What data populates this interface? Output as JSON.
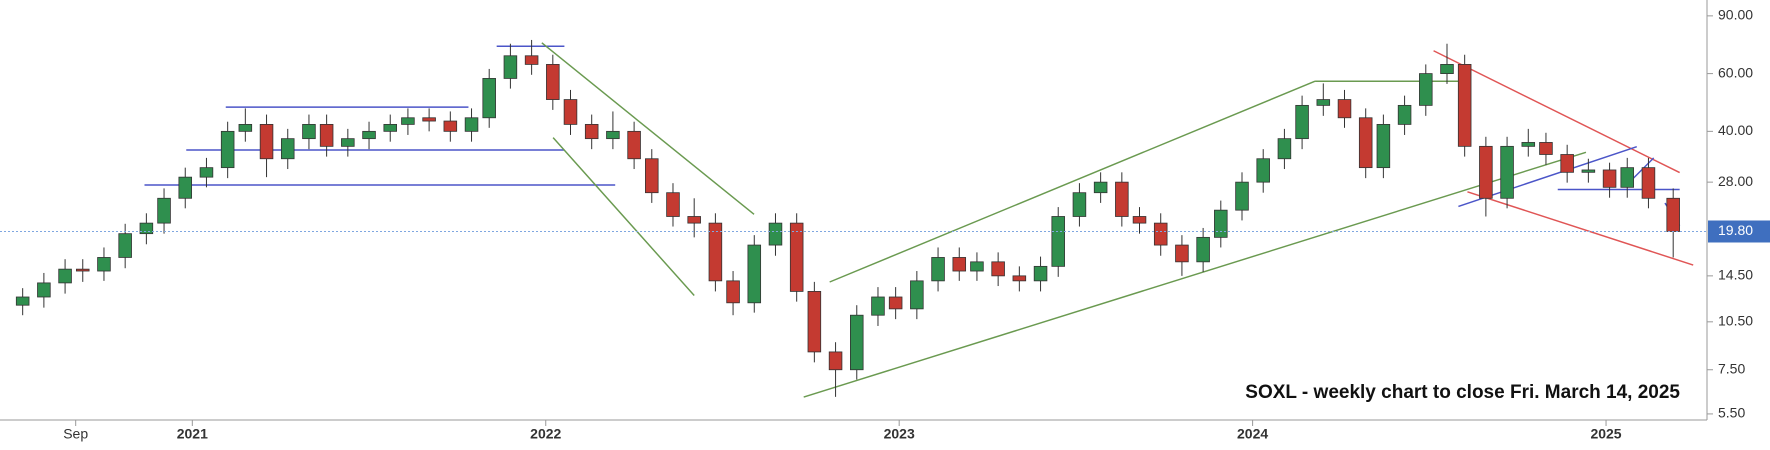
{
  "chart_data": {
    "type": "candlestick",
    "annotation": "SOXL - weekly chart to close Fri. March 14, 2025",
    "log_scale": true,
    "grid": false,
    "up_color": "#2f8f4e",
    "down_color": "#c43a31",
    "x": [
      2020.52,
      2020.58,
      2020.64,
      2020.69,
      2020.75,
      2020.81,
      2020.87,
      2020.92,
      2020.98,
      2021.04,
      2021.1,
      2021.15,
      2021.21,
      2021.27,
      2021.33,
      2021.38,
      2021.44,
      2021.5,
      2021.56,
      2021.61,
      2021.67,
      2021.73,
      2021.79,
      2021.84,
      2021.9,
      2021.96,
      2022.02,
      2022.07,
      2022.13,
      2022.19,
      2022.25,
      2022.3,
      2022.36,
      2022.42,
      2022.48,
      2022.53,
      2022.59,
      2022.65,
      2022.71,
      2022.76,
      2022.82,
      2022.88,
      2022.94,
      2022.99,
      2023.05,
      2023.11,
      2023.17,
      2023.22,
      2023.28,
      2023.34,
      2023.4,
      2023.45,
      2023.51,
      2023.57,
      2023.63,
      2023.68,
      2023.74,
      2023.8,
      2023.86,
      2023.91,
      2023.97,
      2024.03,
      2024.09,
      2024.14,
      2024.2,
      2024.26,
      2024.32,
      2024.37,
      2024.43,
      2024.49,
      2024.55,
      2024.6,
      2024.66,
      2024.72,
      2024.78,
      2024.83,
      2024.89,
      2024.95,
      2025.01,
      2025.06,
      2025.12,
      2025.19
    ],
    "open": [
      11.8,
      12.5,
      13.8,
      15.2,
      15.0,
      16.5,
      19.5,
      21,
      25,
      29,
      31,
      40,
      42,
      33,
      38,
      42,
      36,
      38,
      40,
      42,
      44,
      43,
      40,
      44,
      58,
      68,
      64,
      50,
      42,
      38,
      40,
      33,
      26,
      22,
      21,
      14,
      12,
      18,
      21,
      13,
      8.5,
      7.5,
      11,
      12.5,
      11.5,
      14,
      16.5,
      15,
      16,
      14.5,
      14,
      15.5,
      22,
      26,
      28,
      22,
      21,
      18,
      16,
      19,
      23,
      28,
      33,
      38,
      48,
      50,
      44,
      31,
      42,
      48,
      60,
      64,
      36,
      25,
      36,
      37,
      34,
      30,
      30.5,
      27,
      31,
      25
    ],
    "high": [
      13.3,
      14.8,
      16.3,
      16.3,
      17.7,
      20.9,
      22.5,
      26.8,
      31.0,
      33.2,
      42.8,
      47,
      45,
      40.7,
      45,
      45,
      40.7,
      42.8,
      45,
      47,
      47,
      46,
      47,
      62,
      74,
      76,
      68.5,
      53.5,
      45,
      46,
      42.8,
      35.3,
      27.8,
      25,
      22.5,
      15,
      19.3,
      22.5,
      22.5,
      13.9,
      9.1,
      11.8,
      13.4,
      13.4,
      15,
      17.7,
      17.7,
      17.1,
      17.1,
      15.5,
      16.6,
      23.5,
      27.8,
      30,
      30,
      23.5,
      22.5,
      19.3,
      20.3,
      24.6,
      30,
      35.3,
      40.7,
      51.4,
      56,
      53.5,
      47,
      45,
      51.4,
      64,
      74,
      68.5,
      38.5,
      38.5,
      40.7,
      39.6,
      36.4,
      33,
      32.1,
      33.2,
      33.2,
      26.8
    ],
    "low": [
      11.0,
      11.6,
      12.8,
      13.9,
      14.0,
      15.3,
      18.1,
      19.5,
      23.3,
      27.0,
      28.8,
      37.2,
      29,
      30.7,
      35.3,
      33.5,
      33.5,
      35.3,
      37.2,
      39,
      40,
      37.2,
      37.2,
      41,
      54,
      59.5,
      46.5,
      39,
      35.3,
      35.3,
      30.7,
      24.2,
      20.5,
      19,
      13,
      11,
      11.2,
      16.7,
      12.1,
      7.9,
      6.2,
      7,
      10.2,
      10.7,
      10.7,
      13,
      14,
      14,
      13.5,
      13,
      13,
      14.4,
      20.5,
      24.2,
      20.5,
      19.5,
      16.7,
      14.5,
      14.9,
      17.7,
      21.4,
      26,
      30.7,
      35.3,
      44.6,
      41,
      28.8,
      28.8,
      39,
      44.6,
      55.8,
      33.5,
      22,
      23.3,
      33.5,
      31.6,
      27.9,
      27.9,
      25.1,
      25.1,
      23.3,
      16.5
    ],
    "close": [
      12.5,
      13.8,
      15.2,
      15.0,
      16.5,
      19.5,
      21,
      25,
      29,
      31,
      40,
      42,
      33,
      38,
      42,
      36,
      38,
      40,
      42,
      44,
      43,
      40,
      44,
      58,
      68,
      64,
      50,
      42,
      38,
      40,
      33,
      26,
      22,
      21,
      14,
      12,
      18,
      21,
      13,
      8.5,
      7.5,
      11,
      12.5,
      11.5,
      14,
      16.5,
      15,
      16,
      14.5,
      14,
      15.5,
      22,
      26,
      28,
      22,
      21,
      18,
      16,
      19,
      23,
      28,
      33,
      38,
      48,
      50,
      44,
      31,
      42,
      48,
      60,
      64,
      36,
      25,
      36,
      37,
      34,
      30,
      30.5,
      27,
      31,
      25,
      19.8
    ],
    "last_price": {
      "value": 19.8,
      "label": "19.80"
    },
    "xlim": [
      2020.47,
      2025.28
    ],
    "xticks": [
      {
        "value": 2020.67,
        "label": "Sep"
      },
      2021,
      2022,
      2023,
      2024,
      2025
    ],
    "ylim": [
      5.27,
      100.6
    ],
    "yticks": [
      {
        "value": 90,
        "label": "90.00"
      },
      {
        "value": 60,
        "label": "60.00"
      },
      {
        "value": 40,
        "label": "40.00"
      },
      {
        "value": 28,
        "label": "28.00"
      },
      {
        "value": 14.5,
        "label": "14.50"
      },
      {
        "value": 10.5,
        "label": "10.50"
      },
      {
        "value": 7.5,
        "label": "7.50"
      },
      {
        "value": 5.5,
        "label": "5.50"
      }
    ]
  }
}
